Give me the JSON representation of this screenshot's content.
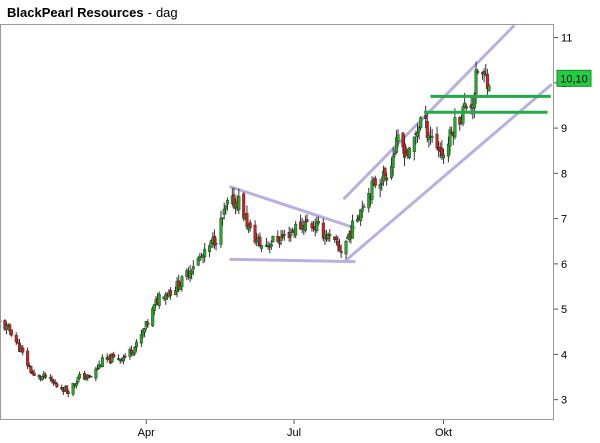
{
  "header": {
    "name": "BlackPearl Resources",
    "separator": "-",
    "period": "dag"
  },
  "chart_data": {
    "type": "candlestick",
    "title": "BlackPearl Resources - dag",
    "x_tick_labels": [
      "Apr",
      "Jul",
      "Okt"
    ],
    "x_ticks": [
      {
        "label": "Apr",
        "date": "2010-04-01"
      },
      {
        "label": "Jul",
        "date": "2010-07-01"
      },
      {
        "label": "Okt",
        "date": "2010-10-01"
      }
    ],
    "x_range": [
      "2010-01-01",
      "2010-12-08"
    ],
    "y_ticks": [
      3,
      4,
      5,
      6,
      7,
      8,
      9,
      10,
      11
    ],
    "y_range": [
      2.55,
      11.3
    ],
    "last_price_label": "10,10",
    "last_price": 10.1,
    "grid": false,
    "colors": {
      "up": "#22aa22",
      "down": "#cc2222",
      "trendline": "#b8b0e0",
      "support": "#22aa44",
      "price_tag": "#22cc44"
    },
    "price_path": [
      [
        "2010-01-01",
        4.7
      ],
      [
        "2010-01-08",
        4.5
      ],
      [
        "2010-01-15",
        4.0
      ],
      [
        "2010-01-22",
        3.5
      ],
      [
        "2010-01-29",
        3.5
      ],
      [
        "2010-02-05",
        3.3
      ],
      [
        "2010-02-12",
        3.2
      ],
      [
        "2010-02-19",
        3.5
      ],
      [
        "2010-02-26",
        3.5
      ],
      [
        "2010-03-05",
        3.85
      ],
      [
        "2010-03-12",
        3.9
      ],
      [
        "2010-03-19",
        3.95
      ],
      [
        "2010-03-26",
        4.2
      ],
      [
        "2010-04-02",
        4.7
      ],
      [
        "2010-04-09",
        5.3
      ],
      [
        "2010-04-16",
        5.4
      ],
      [
        "2010-04-23",
        5.6
      ],
      [
        "2010-04-30",
        6.0
      ],
      [
        "2010-05-07",
        6.2
      ],
      [
        "2010-05-14",
        6.6
      ],
      [
        "2010-05-21",
        7.3
      ],
      [
        "2010-05-28",
        7.4
      ],
      [
        "2010-06-04",
        6.7
      ],
      [
        "2010-06-11",
        6.4
      ],
      [
        "2010-06-18",
        6.5
      ],
      [
        "2010-06-25",
        6.6
      ],
      [
        "2010-07-02",
        6.8
      ],
      [
        "2010-07-09",
        6.9
      ],
      [
        "2010-07-16",
        6.8
      ],
      [
        "2010-07-23",
        6.55
      ],
      [
        "2010-07-30",
        6.3
      ],
      [
        "2010-08-06",
        6.8
      ],
      [
        "2010-08-13",
        7.4
      ],
      [
        "2010-08-20",
        7.8
      ],
      [
        "2010-08-27",
        8.0
      ],
      [
        "2010-09-03",
        8.7
      ],
      [
        "2010-09-10",
        8.4
      ],
      [
        "2010-09-17",
        9.2
      ],
      [
        "2010-09-24",
        8.8
      ],
      [
        "2010-10-01",
        8.4
      ],
      [
        "2010-10-08",
        9.1
      ],
      [
        "2010-10-15",
        9.5
      ],
      [
        "2010-10-19",
        9.6
      ],
      [
        "2010-10-22",
        10.3
      ],
      [
        "2010-10-26",
        10.1
      ],
      [
        "2010-10-29",
        10.1
      ]
    ],
    "trendlines": [
      {
        "kind": "channel-upper",
        "from": [
          "2010-08-01",
          7.45
        ],
        "to": [
          "2010-11-13",
          11.25
        ]
      },
      {
        "kind": "channel-lower",
        "from": [
          "2010-08-01",
          6.05
        ],
        "to": [
          "2010-12-06",
          9.95
        ]
      },
      {
        "kind": "triangle-upper",
        "from": [
          "2010-05-23",
          7.7
        ],
        "to": [
          "2010-08-07",
          6.8
        ]
      },
      {
        "kind": "triangle-lower",
        "from": [
          "2010-05-23",
          6.1
        ],
        "to": [
          "2010-08-07",
          6.05
        ]
      }
    ],
    "support_lines": [
      {
        "value": 9.7,
        "from": "2010-09-23",
        "to": "2010-12-06"
      },
      {
        "value": 9.35,
        "from": "2010-09-19",
        "to": "2010-12-04"
      }
    ]
  }
}
